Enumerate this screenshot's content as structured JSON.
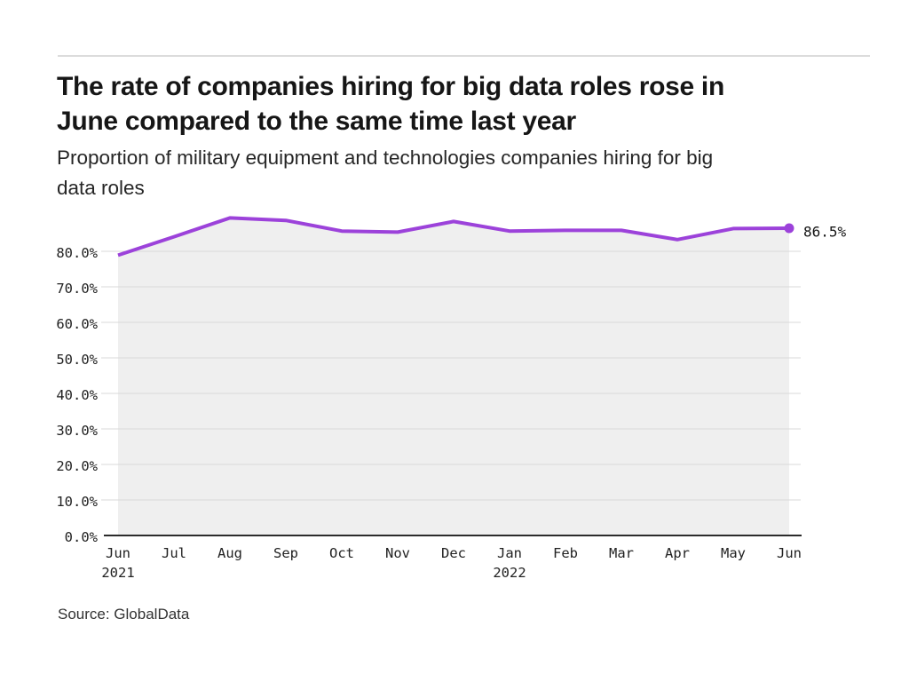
{
  "header": {
    "title_lines": [
      "The rate of companies hiring for big data roles rose in",
      "June compared to the same time last year"
    ],
    "subtitle_lines": [
      "Proportion of military equipment and technologies companies hiring for big",
      "data roles"
    ]
  },
  "chart_data": {
    "type": "area",
    "title": "Proportion of military equipment and technologies companies hiring for big data roles",
    "categories": [
      "Jun",
      "Jul",
      "Aug",
      "Sep",
      "Oct",
      "Nov",
      "Dec",
      "Jan",
      "Feb",
      "Mar",
      "Apr",
      "May",
      "Jun"
    ],
    "category_year_labels": {
      "0": "2021",
      "7": "2022"
    },
    "values": [
      78.9,
      84.1,
      89.4,
      88.7,
      85.7,
      85.4,
      88.4,
      85.7,
      85.9,
      85.9,
      83.3,
      86.4,
      86.5
    ],
    "end_label": "86.5%",
    "y_ticks": [
      "0.0%",
      "10.0%",
      "20.0%",
      "30.0%",
      "40.0%",
      "50.0%",
      "60.0%",
      "70.0%",
      "80.0%"
    ],
    "y_tick_values": [
      0,
      10,
      20,
      30,
      40,
      50,
      60,
      70,
      80
    ],
    "ylim": [
      0,
      92
    ],
    "xlabel": "",
    "ylabel": "",
    "grid": true,
    "legend": "none",
    "colors": {
      "line": "#9c42da",
      "area_fill": "#efefef",
      "gridline": "#d9d9d9",
      "axis_line": "#2b2b2b",
      "tick_text": "#222222"
    }
  },
  "source": {
    "label": "Source: GlobalData"
  }
}
